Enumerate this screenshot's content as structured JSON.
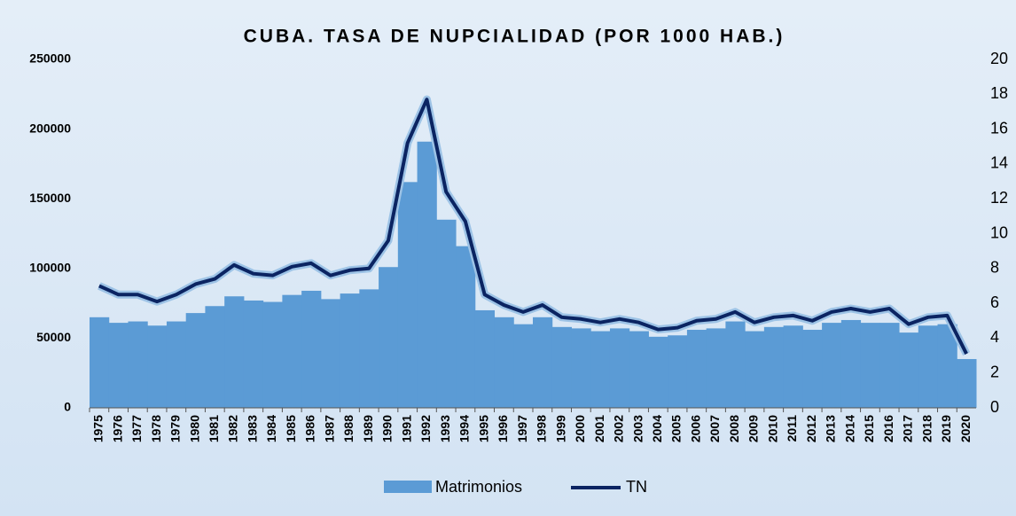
{
  "chart_data": {
    "type": "bar_line",
    "title": "CUBA. TASA DE NUPCIALIDAD (POR 1000 HAB.)",
    "categories": [
      "1975",
      "1976",
      "1977",
      "1978",
      "1979",
      "1980",
      "1981",
      "1982",
      "1983",
      "1984",
      "1985",
      "1986",
      "1987",
      "1988",
      "1989",
      "1990",
      "1991",
      "1992",
      "1993",
      "1994",
      "1995",
      "1996",
      "1997",
      "1998",
      "1999",
      "2000",
      "2001",
      "2002",
      "2003",
      "2004",
      "2005",
      "2006",
      "2007",
      "2008",
      "2009",
      "2010",
      "2011",
      "2012",
      "2013",
      "2014",
      "2015",
      "2016",
      "2017",
      "2018",
      "2019",
      "2020"
    ],
    "series": [
      {
        "name": "Matrimonios",
        "color": "#5b9bd5",
        "values": [
          65000,
          61000,
          62000,
          59000,
          62000,
          68000,
          73000,
          80000,
          77000,
          76000,
          81000,
          84000,
          78000,
          82000,
          85000,
          101000,
          162000,
          191000,
          135000,
          116000,
          70000,
          65000,
          60000,
          65000,
          58000,
          57000,
          55000,
          57000,
          55000,
          51000,
          52000,
          56000,
          57000,
          62000,
          55000,
          58000,
          59000,
          56000,
          61000,
          63000,
          61000,
          61000,
          54000,
          59000,
          60000,
          35000
        ]
      },
      {
        "name": "TN",
        "color": "#0b2462",
        "axis": "y2",
        "values": [
          7.0,
          6.5,
          6.5,
          6.1,
          6.5,
          7.1,
          7.4,
          8.2,
          7.7,
          7.6,
          8.1,
          8.3,
          7.6,
          7.9,
          8.0,
          9.6,
          15.2,
          17.7,
          12.4,
          10.7,
          6.5,
          5.9,
          5.5,
          5.9,
          5.2,
          5.1,
          4.9,
          5.1,
          4.9,
          4.5,
          4.6,
          5.0,
          5.1,
          5.5,
          4.9,
          5.2,
          5.3,
          5.0,
          5.5,
          5.7,
          5.5,
          5.7,
          4.8,
          5.2,
          5.3,
          3.1
        ]
      }
    ],
    "ylim": [
      0,
      250000
    ],
    "yticks": [
      0,
      50000,
      100000,
      150000,
      200000,
      250000
    ],
    "y2lim": [
      0,
      20
    ],
    "y2ticks": [
      0,
      2,
      4,
      6,
      8,
      10,
      12,
      14,
      16,
      18,
      20
    ]
  }
}
